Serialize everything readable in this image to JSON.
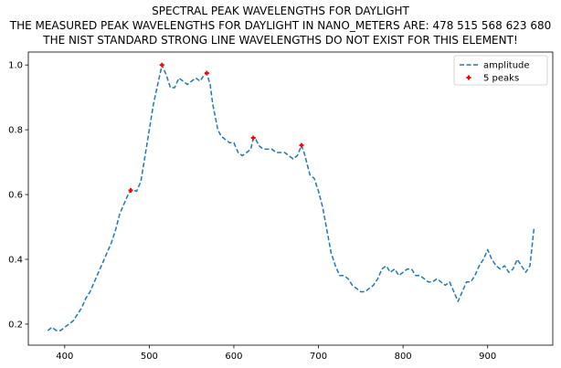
{
  "chart_data": {
    "type": "line",
    "title_lines": [
      "SPECTRAL PEAK WAVELENGTHS FOR DAYLIGHT",
      "THE MEASURED PEAK WAVELENGTHS FOR DAYLIGHT IN NANO_METERS ARE: 478 515 568 623 680",
      "THE NIST STANDARD STRONG LINE WAVELENGTHS DO NOT EXIST FOR THIS ELEMENT!"
    ],
    "xlim": [
      357,
      977
    ],
    "ylim": [
      0.135,
      1.04
    ],
    "x_ticks": [
      400,
      500,
      600,
      700,
      800,
      900
    ],
    "y_ticks": [
      0.2,
      0.4,
      0.6,
      0.8,
      1.0
    ],
    "y_tick_labels": [
      "0.2",
      "0.4",
      "0.6",
      "0.8",
      "1.0"
    ],
    "grid": false,
    "legend_position": "top-right",
    "series": [
      {
        "name": "amplitude",
        "style": "dashed-line",
        "color": "#1f77b4",
        "x": [
          380,
          385,
          390,
          395,
          400,
          405,
          410,
          415,
          420,
          425,
          430,
          435,
          440,
          445,
          450,
          455,
          460,
          465,
          470,
          475,
          478,
          480,
          485,
          490,
          495,
          500,
          505,
          510,
          515,
          520,
          525,
          530,
          535,
          540,
          545,
          550,
          555,
          560,
          565,
          568,
          572,
          575,
          578,
          581,
          585,
          590,
          595,
          600,
          605,
          610,
          615,
          620,
          623,
          626,
          630,
          635,
          640,
          645,
          650,
          655,
          660,
          665,
          670,
          675,
          680,
          683,
          686,
          690,
          695,
          700,
          705,
          710,
          715,
          720,
          725,
          730,
          735,
          740,
          745,
          750,
          755,
          760,
          765,
          770,
          775,
          780,
          785,
          790,
          795,
          800,
          805,
          810,
          815,
          820,
          825,
          830,
          835,
          840,
          845,
          850,
          855,
          860,
          865,
          870,
          875,
          880,
          885,
          890,
          895,
          900,
          905,
          910,
          915,
          920,
          925,
          930,
          935,
          940,
          945,
          950,
          955
        ],
        "y": [
          0.18,
          0.19,
          0.18,
          0.18,
          0.19,
          0.2,
          0.21,
          0.23,
          0.25,
          0.28,
          0.3,
          0.33,
          0.36,
          0.39,
          0.42,
          0.45,
          0.49,
          0.54,
          0.57,
          0.6,
          0.613,
          0.615,
          0.61,
          0.64,
          0.72,
          0.8,
          0.88,
          0.94,
          1.0,
          0.97,
          0.93,
          0.93,
          0.96,
          0.95,
          0.94,
          0.95,
          0.96,
          0.95,
          0.97,
          0.975,
          0.94,
          0.88,
          0.84,
          0.8,
          0.78,
          0.77,
          0.76,
          0.76,
          0.73,
          0.72,
          0.73,
          0.74,
          0.775,
          0.77,
          0.75,
          0.74,
          0.74,
          0.74,
          0.73,
          0.73,
          0.73,
          0.72,
          0.71,
          0.72,
          0.752,
          0.73,
          0.7,
          0.66,
          0.65,
          0.61,
          0.56,
          0.49,
          0.42,
          0.38,
          0.35,
          0.35,
          0.34,
          0.32,
          0.31,
          0.3,
          0.3,
          0.31,
          0.32,
          0.34,
          0.37,
          0.38,
          0.36,
          0.37,
          0.35,
          0.36,
          0.37,
          0.37,
          0.35,
          0.35,
          0.34,
          0.33,
          0.33,
          0.34,
          0.33,
          0.32,
          0.33,
          0.3,
          0.27,
          0.3,
          0.33,
          0.33,
          0.35,
          0.38,
          0.4,
          0.43,
          0.4,
          0.38,
          0.37,
          0.38,
          0.36,
          0.37,
          0.4,
          0.38,
          0.36,
          0.38,
          0.5
        ]
      },
      {
        "name": "5 peaks",
        "style": "plus-markers",
        "color": "#ff0000",
        "x": [
          478,
          515,
          568,
          623,
          680
        ],
        "y": [
          0.613,
          1.0,
          0.975,
          0.775,
          0.752
        ]
      }
    ]
  }
}
